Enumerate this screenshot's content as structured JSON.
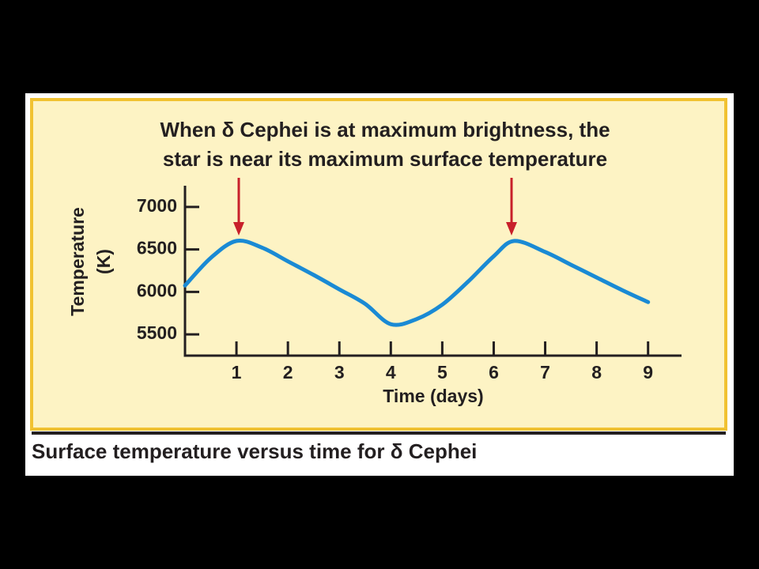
{
  "chart_data": {
    "type": "line",
    "title": [
      "When δ Cephei is at maximum brightness, the",
      "star is near its maximum surface temperature"
    ],
    "caption": "Surface temperature versus time for δ Cephei",
    "xlabel": "Time (days)",
    "ylabel": [
      "Temperature",
      "(K)"
    ],
    "x": [
      0,
      0.5,
      1,
      1.5,
      2,
      2.5,
      3,
      3.5,
      4,
      4.5,
      5,
      5.5,
      6,
      6.4,
      7,
      7.5,
      8,
      8.5,
      9
    ],
    "values": [
      6075,
      6400,
      6600,
      6520,
      6360,
      6200,
      6030,
      5860,
      5620,
      5680,
      5850,
      6120,
      6420,
      6600,
      6470,
      6320,
      6170,
      6020,
      5880
    ],
    "color": "#1a8ad4",
    "xlim": [
      0,
      9.65
    ],
    "ylim": [
      5250,
      7250
    ],
    "xticks": [
      1,
      2,
      3,
      4,
      5,
      6,
      7,
      8,
      9
    ],
    "yticks": [
      5500,
      6000,
      6500,
      7000
    ]
  }
}
